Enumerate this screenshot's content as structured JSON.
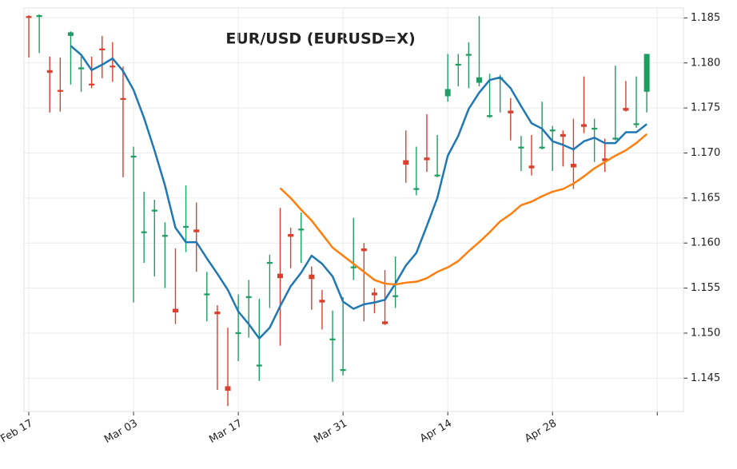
{
  "chart_data": {
    "type": "candlestick",
    "title": "EUR/USD (EURUSD=X)",
    "up_color": "#1e9e62",
    "down_color": "#d9402e",
    "open": [
      1.1852,
      1.1851,
      1.1792,
      1.177,
      1.183,
      1.1793,
      1.1777,
      1.1816,
      1.1797,
      1.1761,
      1.1695,
      1.1611,
      1.1635,
      1.1607,
      1.1527,
      1.1617,
      1.1615,
      1.1542,
      1.1524,
      1.1441,
      1.1499,
      1.1539,
      1.1463,
      1.1577,
      1.1566,
      1.161,
      1.1614,
      1.1565,
      1.1537,
      1.1492,
      1.1458,
      1.1572,
      1.1594,
      1.1545,
      1.1513,
      1.154,
      1.1692,
      1.1659,
      1.1695,
      1.1674,
      1.1763,
      1.1797,
      1.1808,
      1.1778,
      1.174,
      1.1782,
      1.1747,
      1.1705,
      1.1686,
      1.1705,
      1.1724,
      1.1721,
      1.1688,
      1.1732,
      1.1726,
      1.1694,
      1.1715,
      1.175,
      1.1731,
      1.1768
    ],
    "high": [
      1.1853,
      1.1854,
      1.1807,
      1.1806,
      1.1835,
      1.1807,
      1.1807,
      1.183,
      1.1823,
      1.1796,
      1.1707,
      1.1657,
      1.1648,
      1.1623,
      1.1594,
      1.1664,
      1.1645,
      1.1568,
      1.1531,
      1.1506,
      1.1543,
      1.1559,
      1.1538,
      1.1587,
      1.1639,
      1.1617,
      1.1634,
      1.1574,
      1.1548,
      1.1525,
      1.154,
      1.1628,
      1.16,
      1.155,
      1.157,
      1.1585,
      1.1725,
      1.1707,
      1.1743,
      1.172,
      1.181,
      1.181,
      1.1823,
      1.1852,
      1.1788,
      1.1787,
      1.1761,
      1.1719,
      1.172,
      1.1757,
      1.173,
      1.1725,
      1.1738,
      1.1785,
      1.1738,
      1.1716,
      1.1797,
      1.178,
      1.1785,
      1.181
    ],
    "low": [
      1.1806,
      1.1811,
      1.1745,
      1.1746,
      1.1776,
      1.1768,
      1.1772,
      1.1783,
      1.1779,
      1.1673,
      1.1534,
      1.1578,
      1.1563,
      1.155,
      1.151,
      1.159,
      1.1568,
      1.1513,
      1.1437,
      1.1419,
      1.1469,
      1.1495,
      1.1447,
      1.1528,
      1.1486,
      1.1572,
      1.1578,
      1.1526,
      1.1504,
      1.1446,
      1.1453,
      1.1559,
      1.1513,
      1.1522,
      1.1509,
      1.1528,
      1.1667,
      1.1653,
      1.1679,
      1.1673,
      1.1757,
      1.1774,
      1.1772,
      1.1774,
      1.1739,
      1.1745,
      1.1714,
      1.168,
      1.1675,
      1.1704,
      1.168,
      1.1685,
      1.166,
      1.1722,
      1.169,
      1.1679,
      1.1714,
      1.1746,
      1.1728,
      1.1745
    ],
    "close": [
      1.185,
      1.1853,
      1.1789,
      1.1768,
      1.1834,
      1.1795,
      1.1775,
      1.1814,
      1.1795,
      1.1759,
      1.1697,
      1.1613,
      1.1637,
      1.1609,
      1.1523,
      1.1619,
      1.1612,
      1.1544,
      1.1521,
      1.1436,
      1.1501,
      1.1541,
      1.1465,
      1.1579,
      1.1561,
      1.1607,
      1.1616,
      1.156,
      1.1534,
      1.1494,
      1.146,
      1.1574,
      1.1591,
      1.1542,
      1.151,
      1.1542,
      1.1687,
      1.1661,
      1.1692,
      1.1676,
      1.1771,
      1.1799,
      1.181,
      1.1784,
      1.1742,
      1.1784,
      1.1744,
      1.1707,
      1.1683,
      1.1707,
      1.1726,
      1.1718,
      1.1684,
      1.1729,
      1.1728,
      1.1691,
      1.1717,
      1.1747,
      1.1733,
      1.181
    ],
    "moving_averages": [
      {
        "color": "#1f77b4",
        "values": [
          null,
          null,
          null,
          null,
          1.1819,
          1.1809,
          1.1792,
          1.1798,
          1.1805,
          1.1791,
          1.177,
          1.1739,
          1.1703,
          1.1664,
          1.1617,
          1.1601,
          1.1601,
          1.1583,
          1.1566,
          1.1548,
          1.1524,
          1.151,
          1.1494,
          1.1506,
          1.153,
          1.1552,
          1.1567,
          1.1586,
          1.1577,
          1.1563,
          1.1535,
          1.1527,
          1.1532,
          1.1534,
          1.1537,
          1.1555,
          1.1575,
          1.1589,
          1.1619,
          1.165,
          1.1697,
          1.1719,
          1.1749,
          1.1767,
          1.1781,
          1.1784,
          1.1772,
          1.1752,
          1.1733,
          1.1727,
          1.1713,
          1.1709,
          1.1704,
          1.1713,
          1.1717,
          1.1711,
          1.1711,
          1.1723,
          1.1723,
          1.1732
        ]
      },
      {
        "color": "#ff7f0e",
        "values": [
          null,
          null,
          null,
          null,
          null,
          null,
          null,
          null,
          null,
          null,
          null,
          null,
          null,
          null,
          null,
          null,
          null,
          null,
          null,
          null,
          null,
          null,
          null,
          null,
          1.1661,
          1.165,
          1.1637,
          1.1625,
          1.161,
          1.1595,
          1.1586,
          1.1577,
          1.1568,
          1.1559,
          1.1555,
          1.1554,
          1.1556,
          1.1557,
          1.1561,
          1.1568,
          1.1573,
          1.158,
          1.1591,
          1.1601,
          1.1612,
          1.1624,
          1.1632,
          1.1642,
          1.1646,
          1.1652,
          1.1657,
          1.166,
          1.1666,
          1.1674,
          1.1683,
          1.169,
          1.1697,
          1.1703,
          1.1711,
          1.1721
        ]
      }
    ],
    "xlim": [
      -0.46,
      62.5
    ],
    "xticks": [
      {
        "value": 0,
        "label": "Feb 17"
      },
      {
        "value": 10,
        "label": "Mar 03"
      },
      {
        "value": 20,
        "label": "Mar 17"
      },
      {
        "value": 30,
        "label": "Mar 31"
      },
      {
        "value": 40,
        "label": "Apr 14"
      },
      {
        "value": 50,
        "label": "Apr 28"
      },
      {
        "value": 60,
        "label": null
      }
    ],
    "ylim": [
      1.1413,
      1.1861
    ],
    "yticks": [
      1.145,
      {
        "value": 1.15,
        "label": "1.150"
      },
      1.155,
      {
        "value": 1.16,
        "label": "1.160"
      },
      1.165,
      {
        "value": 1.17,
        "label": "1.170"
      },
      1.175,
      {
        "value": 1.18,
        "label": "1.180"
      },
      1.185
    ],
    "grid": true
  }
}
